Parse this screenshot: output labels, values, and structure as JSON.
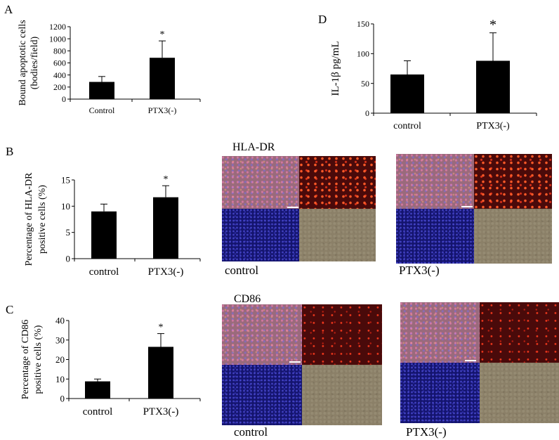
{
  "panel_letters": {
    "a": "A",
    "b": "B",
    "c": "C",
    "d": "D"
  },
  "micrograph_labels": {
    "hla_title": "HLA-DR",
    "hla_control": "control",
    "hla_ptx3": "PTX3(-)",
    "cd86_title": "CD86",
    "cd86_control": "control",
    "cd86_ptx3": "PTX3(-)"
  },
  "colors": {
    "bar": "#000000",
    "axis": "#000000",
    "text": "#000000"
  },
  "chart_data": [
    {
      "id": "A",
      "type": "bar",
      "categories": [
        "Control",
        "PTX3(-)"
      ],
      "values": [
        285,
        685
      ],
      "errors": [
        90,
        280
      ],
      "significance": [
        "",
        "*"
      ],
      "ylim": [
        0,
        1200
      ],
      "yticks": [
        0,
        200,
        400,
        600,
        800,
        1000,
        1200
      ],
      "ylabel_lines": [
        "Bound  apoptotic cells",
        "(bodies/field)"
      ],
      "xlabel": "",
      "grid": false
    },
    {
      "id": "B",
      "type": "bar",
      "categories": [
        "control",
        "PTX3(-)"
      ],
      "values": [
        9,
        11.7
      ],
      "errors": [
        1.4,
        2.2
      ],
      "significance": [
        "",
        "*"
      ],
      "ylim": [
        0,
        15
      ],
      "yticks": [
        0,
        5,
        10,
        15
      ],
      "ylabel_lines": [
        "Percentage of HLA-DR",
        "positive cells (%)"
      ],
      "xlabel": "",
      "grid": false
    },
    {
      "id": "C",
      "type": "bar",
      "categories": [
        "control",
        "PTX3(-)"
      ],
      "values": [
        8.8,
        26.5
      ],
      "errors": [
        1.2,
        6.8
      ],
      "significance": [
        "",
        "*"
      ],
      "ylim": [
        0,
        40
      ],
      "yticks": [
        0,
        10,
        20,
        30,
        40
      ],
      "ylabel_lines": [
        "Percentage of CD86",
        "positive cells (%)"
      ],
      "xlabel": "",
      "grid": false
    },
    {
      "id": "D",
      "type": "bar",
      "categories": [
        "control",
        "PTX3(-)"
      ],
      "values": [
        65,
        88
      ],
      "errors": [
        23,
        47
      ],
      "significance": [
        "",
        "*"
      ],
      "ylim": [
        0,
        150
      ],
      "yticks": [
        0,
        50,
        100,
        150
      ],
      "ylabel_lines": [
        "IL-1β  pg/mL"
      ],
      "xlabel": "",
      "grid": false
    }
  ]
}
